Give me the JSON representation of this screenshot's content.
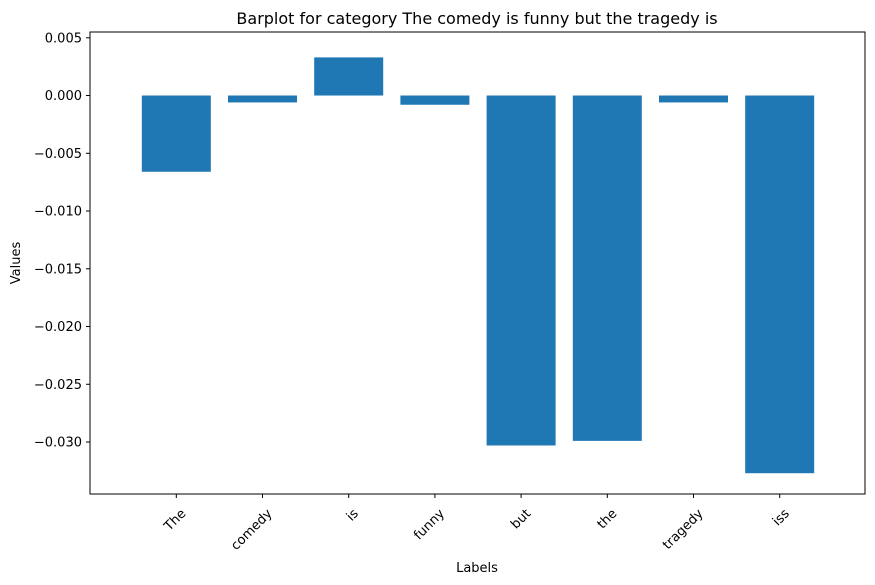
{
  "chart_data": {
    "type": "bar",
    "title": "Barplot for category The comedy is funny but the tragedy is",
    "xlabel": "Labels",
    "ylabel": "Values",
    "categories": [
      "The",
      "comedy",
      "is",
      "funny",
      "but",
      "the",
      "tragedy",
      "iss"
    ],
    "values": [
      -0.0066,
      -0.0006,
      0.0033,
      -0.0008,
      -0.0303,
      -0.0299,
      -0.0006,
      -0.0327
    ],
    "ylim": [
      -0.0345,
      0.0055
    ],
    "yticks": [
      0.005,
      0.0,
      -0.005,
      -0.01,
      -0.015,
      -0.02,
      -0.025,
      -0.03
    ],
    "ytick_labels": [
      "0.005",
      "0.000",
      "−0.005",
      "−0.010",
      "−0.015",
      "−0.020",
      "−0.025",
      "−0.030"
    ],
    "bar_color": "#1f77b4",
    "grid": false,
    "legend": "none"
  }
}
